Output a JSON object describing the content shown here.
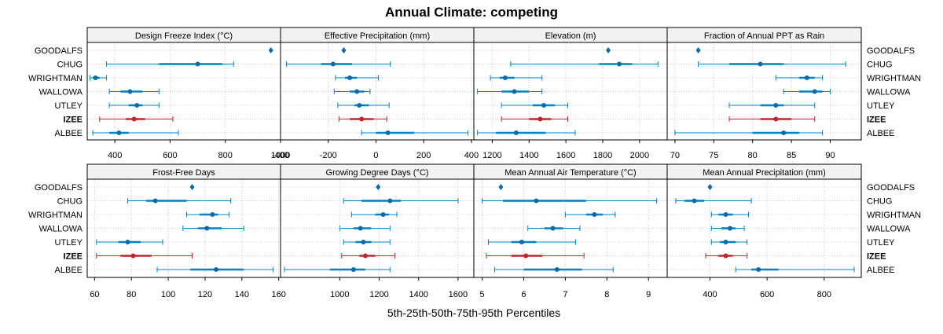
{
  "chart_data": {
    "type": "dot-whisker",
    "title": "Annual Climate: competing",
    "xlabel": "5th-25th-50th-75th-95th Percentiles",
    "sites": [
      "GOODALFS",
      "CHUG",
      "WRIGHTMAN",
      "WALLOWA",
      "UTLEY",
      "IZEE",
      "ALBEE"
    ],
    "highlight_site": "IZEE",
    "colors": {
      "normal": "#0080c0",
      "highlight": "#c0242c",
      "point": "#0e6aa4",
      "grid": "#c8c8c8",
      "strip": "#f2f2f2"
    },
    "panels": [
      {
        "title": "Design Freeze Index (°C)",
        "xlim": [
          300,
          1000
        ],
        "ticks": [
          400,
          600,
          800,
          1000
        ],
        "tick_labels": [
          "400",
          "600",
          "800",
          "1000"
        ],
        "data": [
          [
            965,
            965,
            965,
            965,
            965
          ],
          [
            370,
            560,
            700,
            790,
            830
          ],
          [
            310,
            320,
            330,
            345,
            370
          ],
          [
            380,
            420,
            455,
            500,
            560
          ],
          [
            380,
            450,
            480,
            500,
            560
          ],
          [
            345,
            440,
            470,
            510,
            610
          ],
          [
            320,
            380,
            415,
            450,
            630
          ]
        ]
      },
      {
        "title": "Effective Precipitation (mm)",
        "xlim": [
          -400,
          410
        ],
        "ticks": [
          -400,
          -200,
          0,
          200,
          400
        ],
        "tick_labels": [
          "-400",
          "-200",
          "0",
          "200",
          "400"
        ],
        "data": [
          [
            -135,
            -135,
            -135,
            -135,
            -135
          ],
          [
            -375,
            -230,
            -180,
            -100,
            60
          ],
          [
            -170,
            -130,
            -110,
            -80,
            10
          ],
          [
            -175,
            -110,
            -80,
            -50,
            -25
          ],
          [
            -160,
            -90,
            -70,
            -30,
            55
          ],
          [
            -155,
            -110,
            -60,
            -10,
            45
          ],
          [
            -60,
            0,
            50,
            160,
            385
          ]
        ]
      },
      {
        "title": "Elevation (m)",
        "xlim": [
          1100,
          2150
        ],
        "ticks": [
          1200,
          1400,
          1600,
          1800,
          2000
        ],
        "tick_labels": [
          "1200",
          "1400",
          "1600",
          "1800",
          "2000"
        ],
        "data": [
          [
            1830,
            1830,
            1830,
            1830,
            1830
          ],
          [
            1300,
            1780,
            1890,
            1960,
            2100
          ],
          [
            1190,
            1240,
            1270,
            1320,
            1470
          ],
          [
            1120,
            1250,
            1320,
            1400,
            1470
          ],
          [
            1250,
            1420,
            1480,
            1540,
            1610
          ],
          [
            1250,
            1400,
            1460,
            1520,
            1610
          ],
          [
            1120,
            1220,
            1330,
            1490,
            1650
          ]
        ]
      },
      {
        "title": "Fraction of Annual PPT as Rain",
        "xlim": [
          69,
          94
        ],
        "ticks": [
          70,
          75,
          80,
          85,
          90
        ],
        "tick_labels": [
          "70",
          "75",
          "80",
          "85",
          "90"
        ],
        "data": [
          [
            73,
            73,
            73,
            73,
            73
          ],
          [
            73,
            77,
            81,
            84,
            92
          ],
          [
            83,
            86,
            87,
            88,
            89
          ],
          [
            84,
            86,
            88,
            89,
            90
          ],
          [
            77,
            81,
            83,
            84,
            88
          ],
          [
            77,
            81,
            83,
            85,
            88
          ],
          [
            70,
            80,
            84,
            86,
            89
          ]
        ]
      }
    ],
    "panels_bottom": [
      {
        "title": "Frost-Free Days",
        "xlim": [
          56,
          161
        ],
        "ticks": [
          60,
          80,
          100,
          120,
          140,
          160
        ],
        "tick_labels": [
          "60",
          "80",
          "100",
          "120",
          "140",
          "160"
        ],
        "data": [
          [
            113,
            113,
            113,
            113,
            113
          ],
          [
            78,
            88,
            93,
            110,
            134
          ],
          [
            110,
            117,
            124,
            127,
            133
          ],
          [
            108,
            116,
            121,
            129,
            141
          ],
          [
            61,
            73,
            78,
            85,
            97
          ],
          [
            61,
            74,
            81,
            91,
            113
          ],
          [
            94,
            112,
            126,
            141,
            157
          ]
        ]
      },
      {
        "title": "Growing Degree Days (°C)",
        "xlim": [
          700,
          1680
        ],
        "ticks": [
          1000,
          1200,
          1400,
          1600
        ],
        "tick_labels": [
          "1000",
          "1200",
          "1400",
          "1600"
        ],
        "data": [
          [
            1195,
            1195,
            1195,
            1195,
            1195
          ],
          [
            1020,
            1110,
            1255,
            1310,
            1600
          ],
          [
            1060,
            1180,
            1220,
            1250,
            1290
          ],
          [
            1000,
            1070,
            1105,
            1160,
            1255
          ],
          [
            1020,
            1080,
            1120,
            1160,
            1255
          ],
          [
            1010,
            1100,
            1130,
            1180,
            1280
          ],
          [
            720,
            950,
            1070,
            1130,
            1255
          ]
        ]
      },
      {
        "title": "Mean Annual Air Temperature (°C)",
        "xlim": [
          4.8,
          9.45
        ],
        "ticks": [
          5,
          6,
          7,
          8,
          9
        ],
        "tick_labels": [
          "5",
          "6",
          "7",
          "8",
          "9"
        ],
        "data": [
          [
            5.45,
            5.45,
            5.45,
            5.45,
            5.45
          ],
          [
            5.0,
            5.5,
            6.3,
            7.5,
            9.2
          ],
          [
            7.0,
            7.5,
            7.7,
            7.9,
            8.2
          ],
          [
            6.1,
            6.5,
            6.7,
            6.95,
            7.35
          ],
          [
            5.15,
            5.7,
            5.95,
            6.3,
            7.25
          ],
          [
            5.1,
            5.7,
            6.05,
            6.45,
            7.45
          ],
          [
            5.3,
            6.0,
            6.8,
            7.4,
            8.15
          ]
        ]
      },
      {
        "title": "Mean Annual Precipitation (mm)",
        "xlim": [
          250,
          930
        ],
        "ticks": [
          400,
          600,
          800
        ],
        "tick_labels": [
          "400",
          "600",
          "800"
        ],
        "data": [
          [
            400,
            400,
            400,
            400,
            400
          ],
          [
            280,
            310,
            345,
            380,
            545
          ],
          [
            405,
            430,
            455,
            480,
            535
          ],
          [
            405,
            440,
            470,
            490,
            520
          ],
          [
            405,
            435,
            455,
            490,
            530
          ],
          [
            385,
            430,
            455,
            480,
            530
          ],
          [
            490,
            545,
            570,
            640,
            905
          ]
        ]
      }
    ]
  }
}
